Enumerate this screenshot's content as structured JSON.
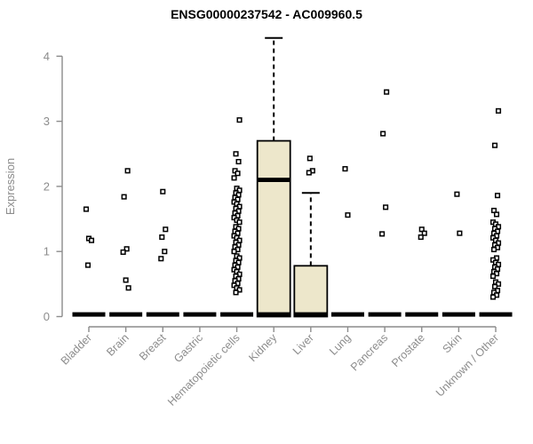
{
  "chart_data": {
    "type": "boxplot",
    "title": "ENSG00000237542 - AC009960.5",
    "ylabel": "Expression",
    "xlabel": "",
    "ylim": [
      0,
      4.35
    ],
    "y_ticks": [
      0,
      1,
      2,
      3,
      4
    ],
    "grid": false,
    "legend": "none",
    "x_label_rotation": 45,
    "categories": [
      "Bladder",
      "Brain",
      "Breast",
      "Gastric",
      "Hematopoietic cells",
      "Kidney",
      "Liver",
      "Lung",
      "Pancreas",
      "Prostate",
      "Skin",
      "Unknown / Other"
    ],
    "series": [
      {
        "category": "Bladder",
        "box": {
          "whisker_low": 0,
          "q1": 0,
          "median": 0,
          "q3": 0,
          "whisker_high": 0
        },
        "points": [
          1.65,
          1.2,
          1.17,
          0.79
        ]
      },
      {
        "category": "Brain",
        "box": {
          "whisker_low": 0,
          "q1": 0,
          "median": 0,
          "q3": 0,
          "whisker_high": 0
        },
        "points": [
          2.24,
          1.84,
          1.04,
          0.99,
          0.56,
          0.44
        ]
      },
      {
        "category": "Breast",
        "box": {
          "whisker_low": 0,
          "q1": 0,
          "median": 0,
          "q3": 0,
          "whisker_high": 0
        },
        "points": [
          1.92,
          1.34,
          1.22,
          1.0,
          0.89
        ]
      },
      {
        "category": "Gastric",
        "box": {
          "whisker_low": 0,
          "q1": 0,
          "median": 0,
          "q3": 0,
          "whisker_high": 0
        },
        "points": []
      },
      {
        "category": "Hematopoietic cells",
        "box": {
          "whisker_low": 0,
          "q1": 0,
          "median": 0,
          "q3": 0,
          "whisker_high": 0
        },
        "points": [
          3.02,
          2.5,
          2.38,
          2.24,
          2.2,
          2.13,
          1.97,
          1.94,
          1.9,
          1.87,
          1.83,
          1.8,
          1.76,
          1.73,
          1.69,
          1.66,
          1.62,
          1.59,
          1.55,
          1.52,
          1.48,
          1.45,
          1.38,
          1.35,
          1.31,
          1.28,
          1.24,
          1.21,
          1.17,
          1.14,
          1.1,
          1.07,
          1.03,
          1.0,
          0.93,
          0.9,
          0.86,
          0.83,
          0.79,
          0.76,
          0.72,
          0.69,
          0.65,
          0.62,
          0.58,
          0.55,
          0.51,
          0.48,
          0.44,
          0.41,
          0.37
        ]
      },
      {
        "category": "Kidney",
        "box": {
          "whisker_low": 0,
          "q1": 0,
          "median": 2.1,
          "q3": 2.7,
          "whisker_high": 4.28
        },
        "points": []
      },
      {
        "category": "Liver",
        "box": {
          "whisker_low": 0,
          "q1": 0,
          "median": 0,
          "q3": 0.78,
          "whisker_high": 1.9
        },
        "points": [
          2.43,
          2.24,
          2.21
        ]
      },
      {
        "category": "Lung",
        "box": {
          "whisker_low": 0,
          "q1": 0,
          "median": 0,
          "q3": 0,
          "whisker_high": 0
        },
        "points": [
          2.27,
          1.56
        ]
      },
      {
        "category": "Pancreas",
        "box": {
          "whisker_low": 0,
          "q1": 0,
          "median": 0,
          "q3": 0,
          "whisker_high": 0
        },
        "points": [
          3.45,
          2.81,
          1.68,
          1.27
        ]
      },
      {
        "category": "Prostate",
        "box": {
          "whisker_low": 0,
          "q1": 0,
          "median": 0,
          "q3": 0,
          "whisker_high": 0
        },
        "points": [
          1.34,
          1.28,
          1.22
        ]
      },
      {
        "category": "Skin",
        "box": {
          "whisker_low": 0,
          "q1": 0,
          "median": 0,
          "q3": 0,
          "whisker_high": 0
        },
        "points": [
          1.88,
          1.28
        ]
      },
      {
        "category": "Unknown / Other",
        "box": {
          "whisker_low": 0,
          "q1": 0,
          "median": 0,
          "q3": 0,
          "whisker_high": 0
        },
        "points": [
          3.16,
          2.63,
          1.86,
          1.63,
          1.57,
          1.45,
          1.42,
          1.38,
          1.35,
          1.31,
          1.28,
          1.24,
          1.21,
          1.17,
          1.13,
          1.1,
          1.06,
          1.03,
          0.9,
          0.87,
          0.83,
          0.8,
          0.76,
          0.73,
          0.69,
          0.66,
          0.62,
          0.53,
          0.5,
          0.46,
          0.4,
          0.37,
          0.33,
          0.3
        ]
      }
    ],
    "colors": {
      "box_fill": "#EDE7CB",
      "box_stroke": "#000000",
      "median": "#000000",
      "whisker": "#000000",
      "point_fill": "#FFFFFF",
      "point_stroke": "#000000",
      "axis": "#8C8C8C",
      "tick_text": "#8C8C8C",
      "title_text": "#000000",
      "background": "#FFFFFF"
    }
  }
}
